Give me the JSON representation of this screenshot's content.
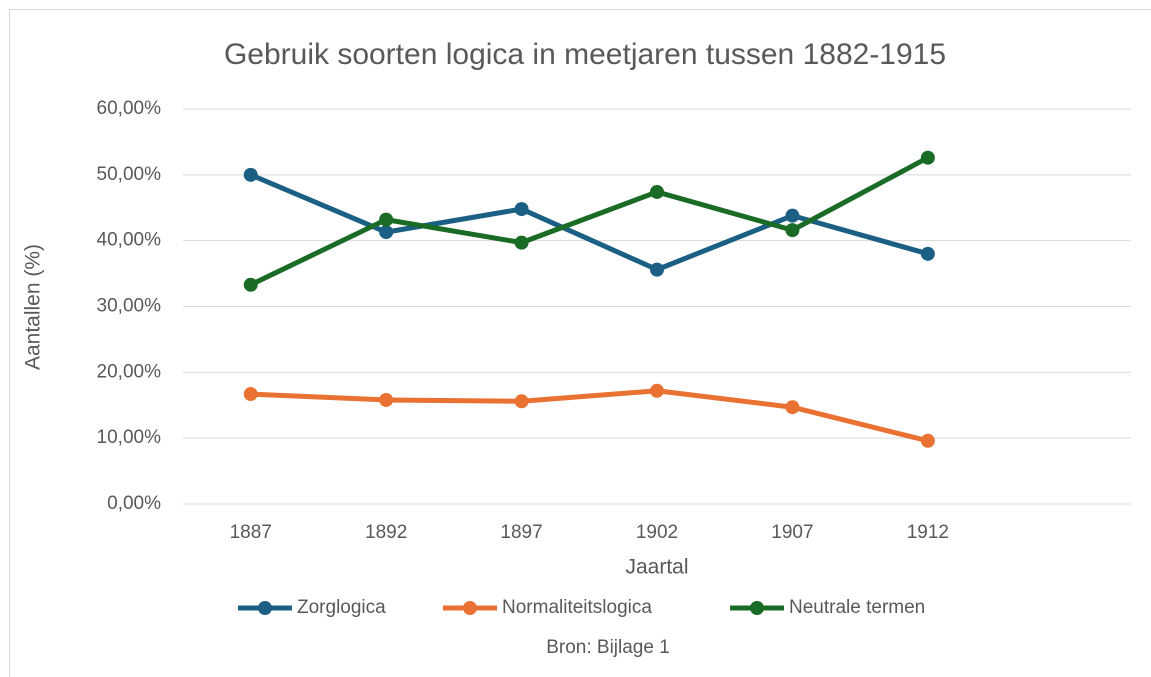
{
  "chart_data": {
    "type": "line",
    "title": "Gebruik soorten logica in meetjaren tussen 1882-1915",
    "x_label": "Jaartal",
    "y_label": "Aantallen  (%)",
    "annotation": "Bron: Bijlage 1",
    "categories": [
      "1887",
      "1892",
      "1897",
      "1902",
      "1907",
      "1912",
      null
    ],
    "series": [
      {
        "name": "Zorglogica",
        "color": "#1b5f85",
        "values": [
          50.0,
          41.3,
          44.8,
          35.6,
          43.8,
          38.0,
          null
        ]
      },
      {
        "name": "Normaliteitslogica",
        "color": "#e97132",
        "values": [
          16.7,
          15.8,
          15.6,
          17.2,
          14.7,
          9.6,
          null
        ]
      },
      {
        "name": "Neutrale termen",
        "color": "#1a6b25",
        "values": [
          33.3,
          43.2,
          39.7,
          47.4,
          41.6,
          52.6,
          null
        ]
      }
    ],
    "ylim": [
      0,
      60
    ],
    "yticks": [
      {
        "value": 0,
        "label": "0,00%"
      },
      {
        "value": 10,
        "label": "10,00%"
      },
      {
        "value": 20,
        "label": "20,00%"
      },
      {
        "value": 30,
        "label": "30,00%"
      },
      {
        "value": 40,
        "label": "40,00%"
      },
      {
        "value": 50,
        "label": "50,00%"
      },
      {
        "value": 60,
        "label": "60,00%"
      }
    ],
    "grid": true,
    "legend": "bottom"
  }
}
